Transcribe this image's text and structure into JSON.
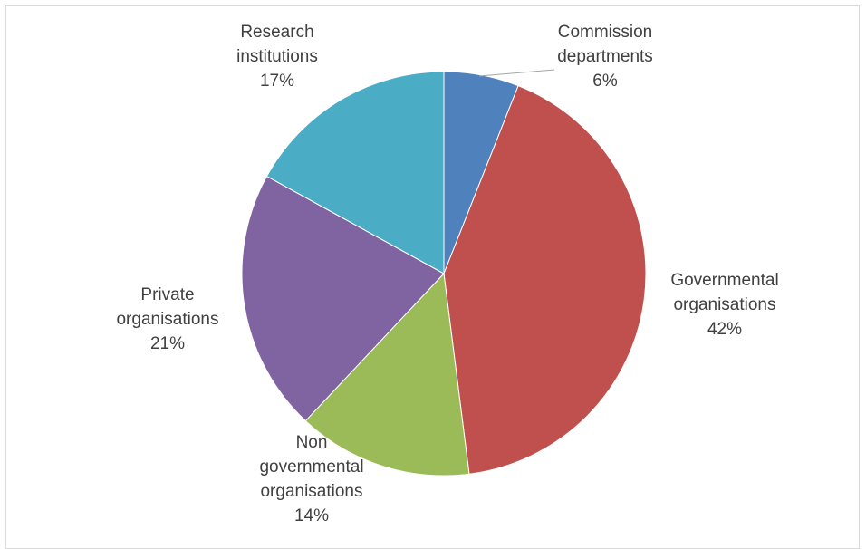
{
  "chart_data": {
    "type": "pie",
    "slices": [
      {
        "name": "Commission departments",
        "label_lines": [
          "Commission",
          "departments"
        ],
        "value": 6,
        "value_label": "6%",
        "color": "#4F81BD"
      },
      {
        "name": "Governmental organisations",
        "label_lines": [
          "Governmental",
          "organisations"
        ],
        "value": 42,
        "value_label": "42%",
        "color": "#C0504D"
      },
      {
        "name": "Non governmental organisations",
        "label_lines": [
          "Non",
          "governmental",
          "organisations"
        ],
        "value": 14,
        "value_label": "14%",
        "color": "#9BBB59"
      },
      {
        "name": "Private organisations",
        "label_lines": [
          "Private",
          "organisations"
        ],
        "value": 21,
        "value_label": "21%",
        "color": "#8064A2"
      },
      {
        "name": "Research institutions",
        "label_lines": [
          "Research",
          "institutions"
        ],
        "value": 17,
        "value_label": "17%",
        "color": "#4BACC6"
      }
    ],
    "start_angle": "12 o'clock",
    "direction": "clockwise",
    "legend": "none",
    "data_labels": "outside with leader line for small slices"
  }
}
